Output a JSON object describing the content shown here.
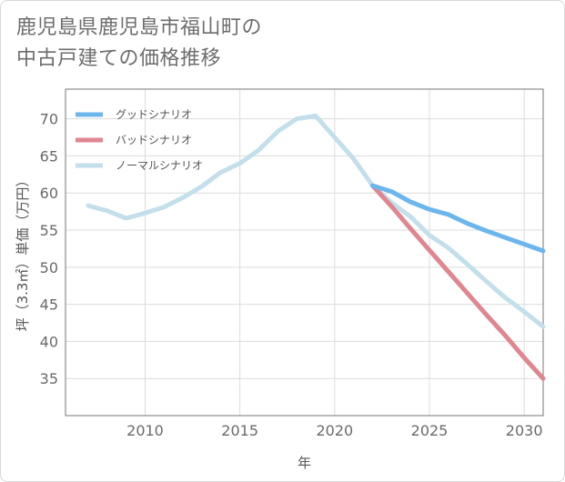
{
  "title_line1": "鹿児島県鹿児島市福山町の",
  "title_line2": "中古戸建ての価格推移",
  "chart_data": {
    "type": "line",
    "xlabel": "年",
    "ylabel": "坪（3.3㎡）単価（万円）",
    "xlim": [
      2005.8,
      2031
    ],
    "ylim": [
      30,
      74
    ],
    "xticks": [
      2010,
      2015,
      2020,
      2025,
      2030
    ],
    "yticks": [
      35,
      40,
      45,
      50,
      55,
      60,
      65,
      70
    ],
    "legend_position": "top-left",
    "series": [
      {
        "name": "グッドシナリオ",
        "color": "#6cb6ee",
        "x": [
          2022,
          2023,
          2024,
          2025,
          2026,
          2027,
          2028,
          2029,
          2030,
          2031
        ],
        "values": [
          61,
          60.2,
          58.8,
          57.8,
          57.1,
          55.9,
          54.9,
          54,
          53.1,
          52.2
        ]
      },
      {
        "name": "バッドシナリオ",
        "color": "#e0868f",
        "x": [
          2022,
          2023,
          2024,
          2025,
          2026,
          2027,
          2028,
          2029,
          2030,
          2031
        ],
        "values": [
          61,
          58.2,
          55.2,
          52.3,
          49.4,
          46.5,
          43.6,
          40.8,
          37.8,
          35
        ]
      },
      {
        "name": "ノーマルシナリオ",
        "color": "#c4dfec",
        "x": [
          2007,
          2008,
          2009,
          2010,
          2011,
          2012,
          2013,
          2014,
          2015,
          2016,
          2017,
          2018,
          2019,
          2020,
          2021,
          2022,
          2023,
          2024,
          2025,
          2026,
          2027,
          2028,
          2029,
          2030,
          2031
        ],
        "values": [
          58.3,
          57.6,
          56.6,
          57.3,
          58.1,
          59.4,
          60.9,
          62.8,
          64,
          65.8,
          68.3,
          70,
          70.4,
          67.5,
          64.6,
          61,
          58.7,
          56.8,
          54.3,
          52.6,
          50.4,
          48.1,
          45.9,
          44,
          42
        ]
      }
    ]
  }
}
